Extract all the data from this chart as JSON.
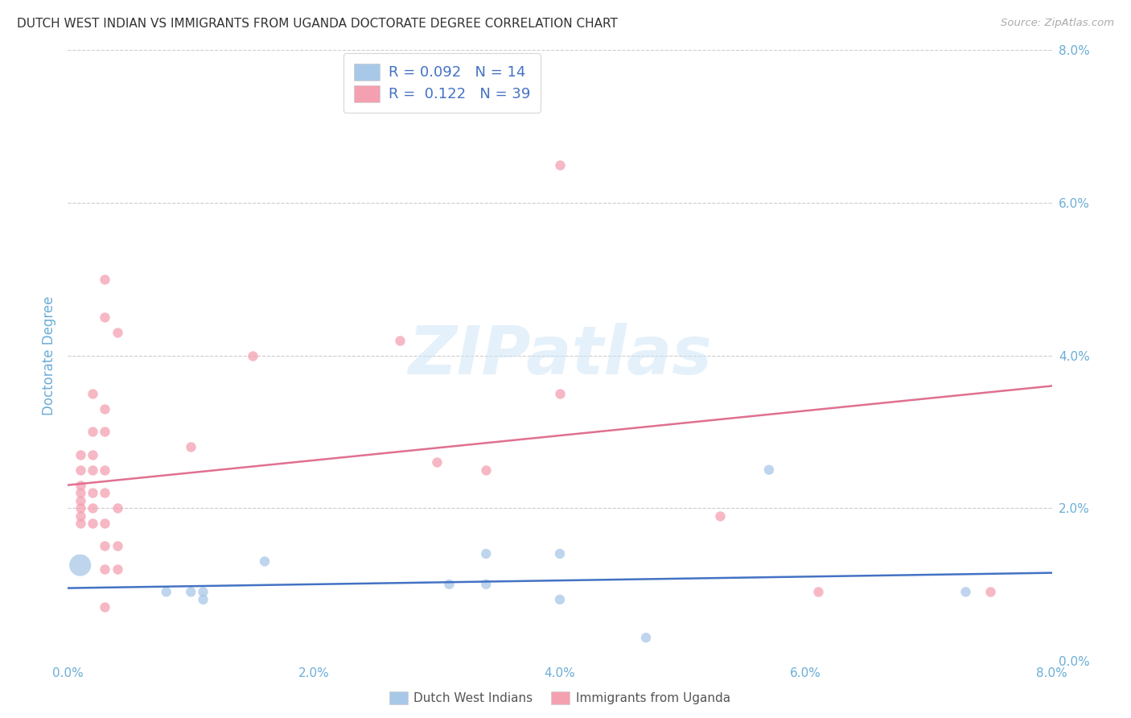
{
  "title": "DUTCH WEST INDIAN VS IMMIGRANTS FROM UGANDA DOCTORATE DEGREE CORRELATION CHART",
  "source": "Source: ZipAtlas.com",
  "ylabel": "Doctorate Degree",
  "watermark": "ZIPatlas",
  "xlim": [
    0.0,
    0.08
  ],
  "ylim": [
    0.0,
    0.08
  ],
  "xtick_values": [
    0.0,
    0.02,
    0.04,
    0.06,
    0.08
  ],
  "ytick_values": [
    0.0,
    0.02,
    0.04,
    0.06,
    0.08
  ],
  "blue_color": "#a8c8e8",
  "pink_color": "#f4a0b0",
  "title_color": "#333333",
  "axis_color": "#6baed6",
  "grid_color": "#cccccc",
  "blue_line_color": "#4472c4",
  "pink_line_color": "#e07090",
  "source_color": "#aaaaaa",
  "legend_text_color": "#4472c4",
  "legend_r_blue": "0.092",
  "legend_n_blue": "14",
  "legend_r_pink": "0.122",
  "legend_n_pink": "39",
  "legend_label_blue": "Dutch West Indians",
  "legend_label_pink": "Immigrants from Uganda",
  "blue_scatter": [
    [
      0.001,
      0.0125
    ],
    [
      0.008,
      0.009
    ],
    [
      0.01,
      0.009
    ],
    [
      0.011,
      0.009
    ],
    [
      0.011,
      0.008
    ],
    [
      0.016,
      0.013
    ],
    [
      0.031,
      0.01
    ],
    [
      0.034,
      0.014
    ],
    [
      0.034,
      0.01
    ],
    [
      0.04,
      0.014
    ],
    [
      0.04,
      0.008
    ],
    [
      0.047,
      0.003
    ],
    [
      0.057,
      0.025
    ],
    [
      0.073,
      0.009
    ]
  ],
  "blue_scatter_sizes": [
    380,
    80,
    80,
    80,
    80,
    80,
    80,
    80,
    80,
    80,
    80,
    80,
    80,
    80
  ],
  "pink_scatter": [
    [
      0.001,
      0.027
    ],
    [
      0.001,
      0.025
    ],
    [
      0.001,
      0.023
    ],
    [
      0.001,
      0.022
    ],
    [
      0.001,
      0.021
    ],
    [
      0.001,
      0.02
    ],
    [
      0.001,
      0.019
    ],
    [
      0.001,
      0.018
    ],
    [
      0.002,
      0.035
    ],
    [
      0.002,
      0.03
    ],
    [
      0.002,
      0.027
    ],
    [
      0.002,
      0.025
    ],
    [
      0.002,
      0.022
    ],
    [
      0.002,
      0.02
    ],
    [
      0.002,
      0.018
    ],
    [
      0.003,
      0.05
    ],
    [
      0.003,
      0.045
    ],
    [
      0.003,
      0.033
    ],
    [
      0.003,
      0.03
    ],
    [
      0.003,
      0.025
    ],
    [
      0.003,
      0.022
    ],
    [
      0.003,
      0.018
    ],
    [
      0.003,
      0.015
    ],
    [
      0.003,
      0.012
    ],
    [
      0.003,
      0.007
    ],
    [
      0.004,
      0.043
    ],
    [
      0.004,
      0.02
    ],
    [
      0.004,
      0.015
    ],
    [
      0.004,
      0.012
    ],
    [
      0.01,
      0.028
    ],
    [
      0.015,
      0.04
    ],
    [
      0.027,
      0.042
    ],
    [
      0.03,
      0.026
    ],
    [
      0.034,
      0.025
    ],
    [
      0.04,
      0.065
    ],
    [
      0.04,
      0.035
    ],
    [
      0.053,
      0.019
    ],
    [
      0.061,
      0.009
    ],
    [
      0.075,
      0.009
    ]
  ],
  "pink_scatter_size": 80,
  "blue_line_x": [
    0.0,
    0.08
  ],
  "blue_line_y": [
    0.0095,
    0.0115
  ],
  "pink_line_x": [
    0.0,
    0.08
  ],
  "pink_line_y": [
    0.023,
    0.036
  ]
}
